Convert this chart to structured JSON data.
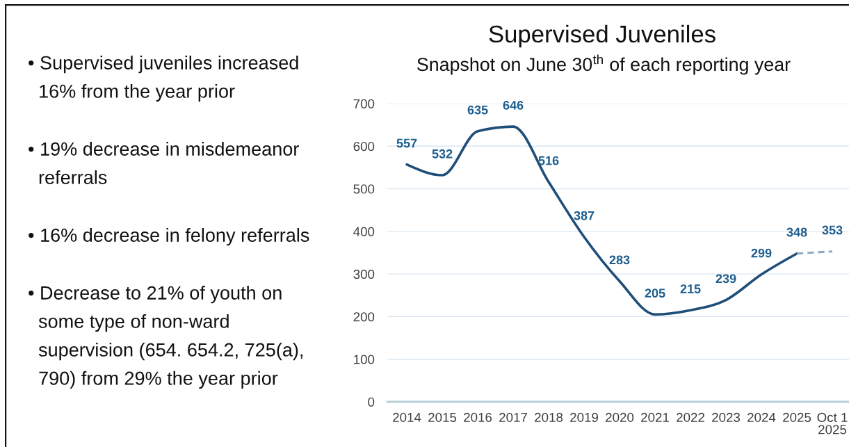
{
  "chart_data": {
    "type": "line",
    "title": "Supervised Juveniles",
    "subtitle": "Snapshot on June 30$^{th}$ of each reporting year",
    "categories": [
      "2014",
      "2015",
      "2016",
      "2017",
      "2018",
      "2019",
      "2020",
      "2021",
      "2022",
      "2023",
      "2024",
      "2025",
      "Oct 1\n2025"
    ],
    "series": [
      {
        "color": "#1f4e79",
        "values": [
          557,
          532,
          635,
          646,
          516,
          387,
          283,
          205,
          215,
          239,
          299,
          348,
          null
        ],
        "value_labels": [
          "557",
          "532",
          "635",
          "646",
          "516",
          "387",
          "283",
          "205",
          "215",
          "239",
          "299",
          "348",
          null
        ]
      },
      {
        "color": "#8fa8c4",
        "line_style": "dashed",
        "values": [
          null,
          null,
          null,
          null,
          null,
          null,
          null,
          null,
          null,
          null,
          null,
          348,
          353
        ],
        "value_labels": [
          null,
          null,
          null,
          null,
          null,
          null,
          null,
          null,
          null,
          null,
          null,
          null,
          "353"
        ]
      }
    ],
    "ylim": [
      0,
      700
    ],
    "yticks": [
      0,
      100,
      200,
      300,
      400,
      500,
      600,
      700
    ],
    "grid": "y",
    "annotations": [
      "• Supervised juveniles increased\n16% from the year prior",
      "• 19% decrease in misdemeanor\nreferrals",
      "• 16% decrease in felony referrals",
      "• Decrease to 21% of youth on\nsome type of non-ward\nsupervision (654. 654.2, 725(a),\n790) from 29% the year prior"
    ]
  }
}
